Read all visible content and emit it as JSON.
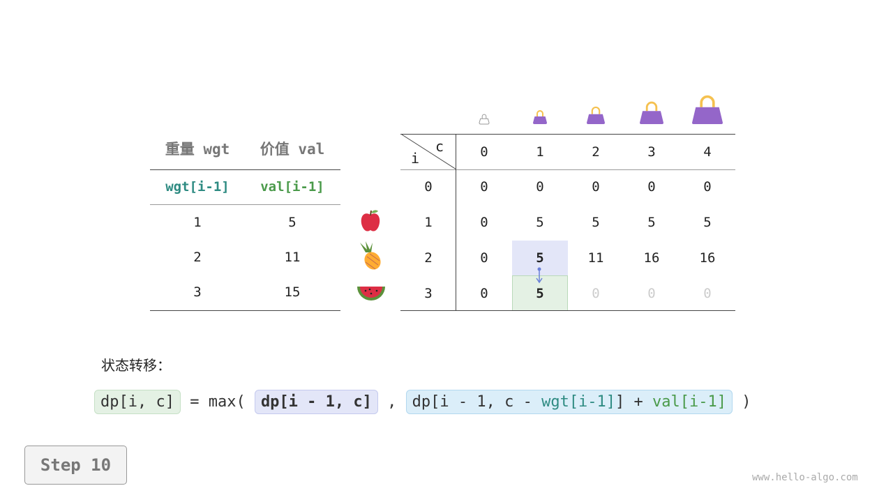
{
  "left_table": {
    "headers": [
      "重量 wgt",
      "价值 val"
    ],
    "subheaders": [
      "wgt[i-1]",
      "val[i-1]"
    ],
    "rows": [
      [
        "1",
        "5"
      ],
      [
        "2",
        "11"
      ],
      [
        "3",
        "15"
      ]
    ],
    "item_icons": [
      "apple-icon",
      "pineapple-icon",
      "watermelon-icon"
    ]
  },
  "dp_table": {
    "corner_c": "c",
    "corner_i": "i",
    "col_headers": [
      "0",
      "1",
      "2",
      "3",
      "4"
    ],
    "row_headers": [
      "0",
      "1",
      "2",
      "3"
    ],
    "rows": [
      [
        "0",
        "0",
        "0",
        "0",
        "0"
      ],
      [
        "0",
        "5",
        "5",
        "5",
        "5"
      ],
      [
        "0",
        "5",
        "11",
        "16",
        "16"
      ],
      [
        "0",
        "5",
        "0",
        "0",
        "0"
      ]
    ],
    "highlight_source": {
      "row": 2,
      "col": 1,
      "color": "#e3e6f8"
    },
    "highlight_target": {
      "row": 3,
      "col": 1,
      "color": "#e4f1e4"
    },
    "bag_icons": [
      "bag-empty-icon",
      "bag-size-1-icon",
      "bag-size-2-icon",
      "bag-size-3-icon",
      "bag-size-4-icon"
    ]
  },
  "formula": {
    "label": "状态转移：",
    "lhs": "dp[i, c]",
    "eq": " = max( ",
    "arg1": "dp[i - 1, c]",
    "comma": " , ",
    "arg2_prefix": "dp[i - 1, c - ",
    "arg2_wgt": "wgt[i-1]",
    "arg2_mid": "] + ",
    "arg2_val": "val[i-1]",
    "close": " )"
  },
  "step_label": "Step 10",
  "watermark": "www.hello-algo.com",
  "colors": {
    "wgt": "#2e8b82",
    "val": "#4a9a4a",
    "bag": "#9466c9",
    "handle": "#f5c150"
  }
}
